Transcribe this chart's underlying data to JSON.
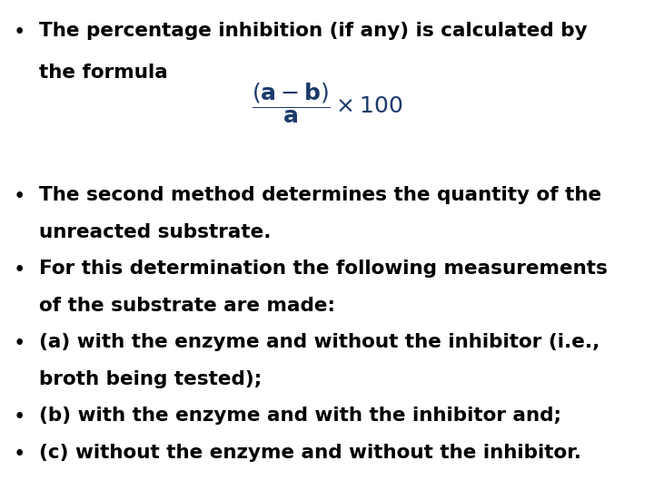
{
  "background_color": "#ffffff",
  "bullet1_line1": "The percentage inhibition (if any) is calculated by",
  "bullet1_line2": "the formula",
  "formula_color": "#1a3a6b",
  "bullet2_line1": "The second method determines the quantity of the",
  "bullet2_line2": "unreacted substrate.",
  "bullet3_line1": "For this determination the following measurements",
  "bullet3_line2": "of the substrate are made:",
  "bullet4_line1": "(a) with the enzyme and without the inhibitor (i.e.,",
  "bullet4_line2": "broth being tested);",
  "bullet5_line1": "(b) with the enzyme and with the inhibitor and;",
  "bullet6_line1": "(c) without the enzyme and without the inhibitor.",
  "text_color": "#000000",
  "fontsize_text": 15.5,
  "fontsize_formula": 18,
  "bullet_char": "•"
}
